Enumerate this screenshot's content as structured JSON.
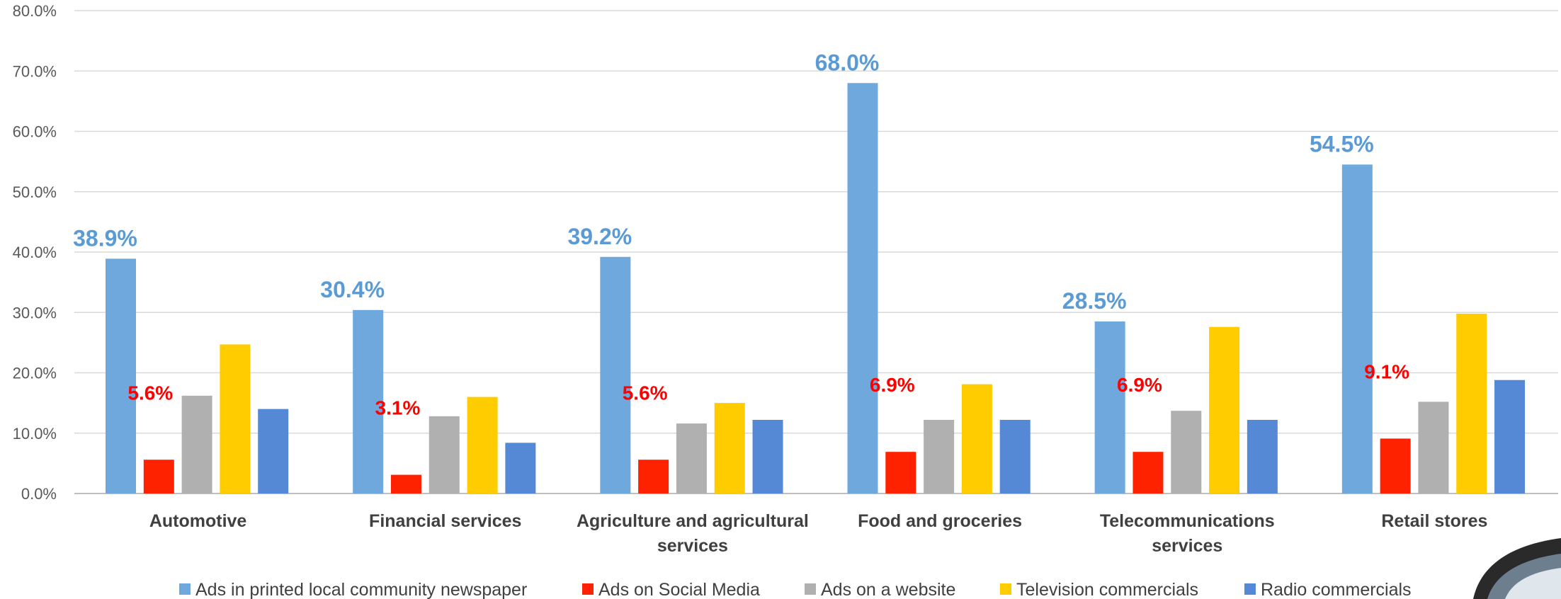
{
  "chart_data": {
    "type": "bar",
    "title": "",
    "xlabel": "",
    "ylabel": "",
    "ylim": [
      0,
      80
    ],
    "y_ticks": [
      "0.0%",
      "10.0%",
      "20.0%",
      "30.0%",
      "40.0%",
      "50.0%",
      "60.0%",
      "70.0%",
      "80.0%"
    ],
    "grid": true,
    "legend_position": "bottom",
    "categories": [
      [
        "Automotive"
      ],
      [
        "Financial services"
      ],
      [
        "Agriculture and agricultural",
        "services"
      ],
      [
        "Food and groceries"
      ],
      [
        "Telecommunications",
        "services"
      ],
      [
        "Retail stores"
      ]
    ],
    "series": [
      {
        "name": "Ads in printed local community newspaper",
        "color": "#6FA8DC",
        "values": [
          38.9,
          30.4,
          39.2,
          68.0,
          28.5,
          54.5
        ],
        "labels": [
          "38.9%",
          "30.4%",
          "39.2%",
          "68.0%",
          "28.5%",
          "54.5%"
        ],
        "label_color": "#5B9BD5"
      },
      {
        "name": "Ads on Social Media",
        "color": "#FF2200",
        "values": [
          5.6,
          3.1,
          5.6,
          6.9,
          6.9,
          9.1
        ],
        "labels": [
          "5.6%",
          "3.1%",
          "5.6%",
          "6.9%",
          "6.9%",
          "9.1%"
        ],
        "label_color": "#FF0000"
      },
      {
        "name": "Ads on a website",
        "color": "#B0B0B0",
        "values": [
          16.2,
          12.8,
          11.6,
          12.2,
          13.7,
          15.2
        ]
      },
      {
        "name": "Television commercials",
        "color": "#FFCC00",
        "values": [
          24.7,
          16.0,
          15.0,
          18.1,
          27.6,
          29.8
        ]
      },
      {
        "name": "Radio commercials",
        "color": "#5588D5",
        "values": [
          14.0,
          8.4,
          12.2,
          12.2,
          12.2,
          18.8
        ]
      }
    ]
  }
}
